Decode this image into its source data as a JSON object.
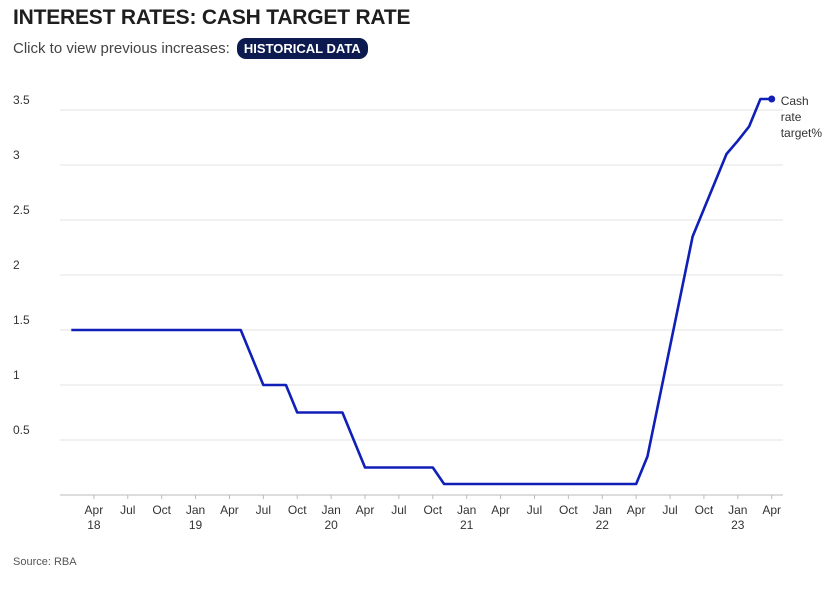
{
  "chart_data": {
    "type": "line",
    "title": "INTEREST RATES: CASH TARGET RATE",
    "subtitle": "Click to view previous increases:",
    "button_label": "HISTORICAL DATA",
    "source": "Source: RBA",
    "x": [
      "2018-02",
      "2018-03",
      "2018-04",
      "2018-05",
      "2018-06",
      "2018-07",
      "2018-08",
      "2018-09",
      "2018-10",
      "2018-11",
      "2018-12",
      "2019-01",
      "2019-02",
      "2019-03",
      "2019-04",
      "2019-05",
      "2019-06",
      "2019-07",
      "2019-08",
      "2019-09",
      "2019-10",
      "2019-11",
      "2019-12",
      "2020-01",
      "2020-02",
      "2020-03",
      "2020-04",
      "2020-05",
      "2020-06",
      "2020-07",
      "2020-08",
      "2020-09",
      "2020-10",
      "2020-11",
      "2020-12",
      "2021-01",
      "2021-02",
      "2021-03",
      "2021-04",
      "2021-05",
      "2021-06",
      "2021-07",
      "2021-08",
      "2021-09",
      "2021-10",
      "2021-11",
      "2021-12",
      "2022-01",
      "2022-02",
      "2022-03",
      "2022-04",
      "2022-05",
      "2022-06",
      "2022-07",
      "2022-08",
      "2022-09",
      "2022-10",
      "2022-11",
      "2022-12",
      "2023-01",
      "2023-02",
      "2023-03",
      "2023-04"
    ],
    "series": [
      {
        "name": "Cash rate target%",
        "color": "#0f1fb8",
        "values": [
          1.5,
          1.5,
          1.5,
          1.5,
          1.5,
          1.5,
          1.5,
          1.5,
          1.5,
          1.5,
          1.5,
          1.5,
          1.5,
          1.5,
          1.5,
          1.5,
          1.25,
          1,
          1,
          1,
          0.75,
          0.75,
          0.75,
          0.75,
          0.75,
          0.5,
          0.25,
          0.25,
          0.25,
          0.25,
          0.25,
          0.25,
          0.25,
          0.1,
          0.1,
          0.1,
          0.1,
          0.1,
          0.1,
          0.1,
          0.1,
          0.1,
          0.1,
          0.1,
          0.1,
          0.1,
          0.1,
          0.1,
          0.1,
          0.1,
          0.1,
          0.35,
          0.85,
          1.35,
          1.85,
          2.35,
          2.6,
          2.85,
          3.1,
          3.22,
          3.35,
          3.6,
          3.6
        ]
      }
    ],
    "xlim": [
      "2018-01",
      "2023-05"
    ],
    "xticks": [
      {
        "value": "2018-04",
        "label": "Apr 18"
      },
      {
        "value": "2018-07",
        "label": "Jul"
      },
      {
        "value": "2018-10",
        "label": "Oct"
      },
      {
        "value": "2019-01",
        "label": "Jan 19"
      },
      {
        "value": "2019-04",
        "label": "Apr"
      },
      {
        "value": "2019-07",
        "label": "Jul"
      },
      {
        "value": "2019-10",
        "label": "Oct"
      },
      {
        "value": "2020-01",
        "label": "Jan 20"
      },
      {
        "value": "2020-04",
        "label": "Apr"
      },
      {
        "value": "2020-07",
        "label": "Jul"
      },
      {
        "value": "2020-10",
        "label": "Oct"
      },
      {
        "value": "2021-01",
        "label": "Jan 21"
      },
      {
        "value": "2021-04",
        "label": "Apr"
      },
      {
        "value": "2021-07",
        "label": "Jul"
      },
      {
        "value": "2021-10",
        "label": "Oct"
      },
      {
        "value": "2022-01",
        "label": "Jan 22"
      },
      {
        "value": "2022-04",
        "label": "Apr"
      },
      {
        "value": "2022-07",
        "label": "Jul"
      },
      {
        "value": "2022-10",
        "label": "Oct"
      },
      {
        "value": "2023-01",
        "label": "Jan 23"
      },
      {
        "value": "2023-04",
        "label": "Apr"
      }
    ],
    "ylim": [
      0,
      3.6
    ],
    "yticks": [
      0.5,
      1,
      1.5,
      2,
      2.5,
      3,
      3.5
    ],
    "grid": true,
    "end_marker": true
  }
}
